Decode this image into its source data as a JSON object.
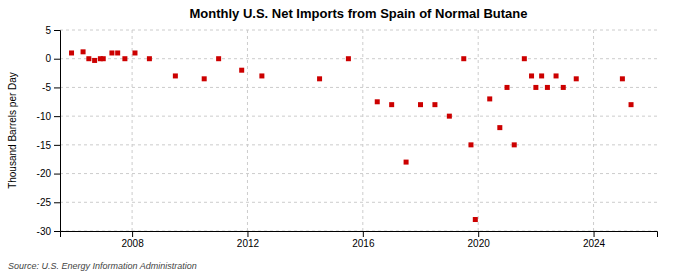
{
  "chart_data": {
    "type": "scatter",
    "title": "Monthly U.S. Net Imports from Spain of Normal Butane",
    "ylabel": "Thousand Barrels per Day",
    "source": "Source: U.S. Energy Information Administration",
    "x": [
      2005.9,
      2006.3,
      2006.5,
      2006.7,
      2006.9,
      2007.0,
      2007.3,
      2007.5,
      2007.75,
      2008.1,
      2008.6,
      2009.5,
      2010.5,
      2011.0,
      2011.8,
      2012.5,
      2014.5,
      2015.5,
      2016.5,
      2017.0,
      2017.5,
      2018.0,
      2018.5,
      2019.0,
      2019.5,
      2019.75,
      2019.9,
      2020.4,
      2020.75,
      2021.0,
      2021.25,
      2021.6,
      2021.85,
      2022.0,
      2022.2,
      2022.4,
      2022.7,
      2022.95,
      2023.4,
      2025.0,
      2025.3
    ],
    "values": [
      1.0,
      1.2,
      0.0,
      -0.3,
      0.0,
      0.0,
      1.0,
      1.0,
      0.0,
      1.0,
      0.0,
      -3.0,
      -3.5,
      0.0,
      -2.0,
      -3.0,
      -3.5,
      0.0,
      -7.5,
      -8.0,
      -18.0,
      -8.0,
      -8.0,
      -10.0,
      0.0,
      -15.0,
      -28.0,
      -7.0,
      -12.0,
      -5.0,
      -15.0,
      0.0,
      -3.0,
      -5.0,
      -3.0,
      -5.0,
      -3.0,
      -5.0,
      -3.5,
      -3.5,
      -8.0
    ],
    "color": "#cc0000",
    "marker": "square",
    "xlim": [
      2005.5,
      2026.2
    ],
    "xticks": [
      2008,
      2012,
      2016,
      2020,
      2024
    ],
    "ylim": [
      -30,
      5
    ],
    "yticks": [
      5,
      0,
      -5,
      -10,
      -15,
      -20,
      -25,
      -30
    ],
    "grid": true
  }
}
